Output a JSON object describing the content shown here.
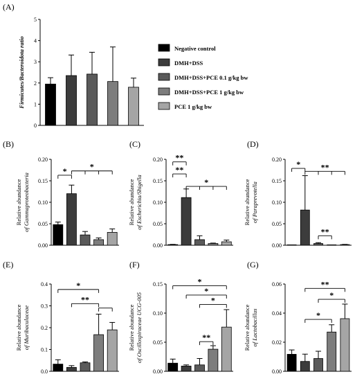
{
  "colors": {
    "s1": "#000000",
    "s2": "#3c3c3c",
    "s3": "#5a5a5a",
    "s4": "#7d7d7d",
    "s5": "#a5a5a5"
  },
  "legend": [
    "Negative control",
    "DMH+DSS",
    "DMH+DSS+PCE 0.1 g/kg bw",
    "DMH+DSS+PCE 1 g/kg bw",
    "PCE 1 g/kg bw"
  ],
  "chart_data": [
    {
      "id": "A",
      "label": "(A)",
      "type": "bar",
      "ylabel": "Firmicutes/Bacteroidota ratio",
      "ylim": [
        0,
        5
      ],
      "yticks": [
        "0",
        "1",
        "2",
        "3",
        "4",
        "5"
      ],
      "values": [
        1.95,
        2.35,
        2.42,
        2.07,
        1.8
      ],
      "errors": [
        0.3,
        0.97,
        1.03,
        1.63,
        0.43
      ],
      "significance": []
    },
    {
      "id": "B",
      "label": "(B)",
      "type": "bar",
      "ylabel": [
        "Relative abundance",
        "of Gammaproteobacteria"
      ],
      "ylim": [
        0,
        0.2
      ],
      "yticks": [
        "0.00",
        "0.05",
        "0.10",
        "0.15",
        "0.20"
      ],
      "values": [
        0.048,
        0.12,
        0.024,
        0.013,
        0.03
      ],
      "errors": [
        0.006,
        0.02,
        0.008,
        0.004,
        0.008
      ],
      "significance": [
        {
          "from": 0,
          "to": [
            1
          ],
          "y": 0.163,
          "text": "*"
        },
        {
          "from": 1,
          "to": [
            2,
            3,
            4
          ],
          "y": 0.173,
          "text": "*"
        }
      ]
    },
    {
      "id": "C",
      "label": "(C)",
      "type": "bar",
      "ylabel": [
        "Relative abundance",
        "of Escherichia/Shigella"
      ],
      "ylim": [
        0,
        0.2
      ],
      "yticks": [
        "0.00",
        "0.05",
        "0.10",
        "0.15",
        "0.20"
      ],
      "values": [
        0.0015,
        0.111,
        0.013,
        0.004,
        0.008
      ],
      "errors": [
        0.0005,
        0.02,
        0.009,
        0.001,
        0.004
      ],
      "significance": [
        {
          "from": 0,
          "to": [
            1
          ],
          "y": 0.166,
          "text": "**"
        },
        {
          "from": 0,
          "to": [
            1
          ],
          "y": 0.194,
          "text": "**"
        },
        {
          "from": 1,
          "to": [
            2,
            3,
            4
          ],
          "y": 0.137,
          "text": "*"
        }
      ]
    },
    {
      "id": "D",
      "label": "(D)",
      "type": "bar",
      "ylabel": [
        "Relative abundance",
        "of Paraprevotella"
      ],
      "ylim": [
        0,
        0.2
      ],
      "yticks": [
        "0.00",
        "0.05",
        "0.10",
        "0.15",
        "0.20"
      ],
      "values": [
        0.0,
        0.082,
        0.004,
        0.0005,
        0.0015
      ],
      "errors": [
        0.0,
        0.08,
        0.002,
        0.0003,
        0.0005
      ],
      "significance": [
        {
          "from": 0,
          "to": [
            1
          ],
          "y": 0.179,
          "text": "*"
        },
        {
          "from": 1,
          "to": [
            2,
            3,
            4
          ],
          "y": 0.172,
          "text": "**"
        },
        {
          "from": 2,
          "to": [
            3
          ],
          "y": 0.022,
          "text": "**"
        }
      ]
    },
    {
      "id": "E",
      "label": "(E)",
      "type": "bar",
      "ylabel": [
        "Relative abundance",
        "of Muribaculaceae"
      ],
      "ylim": [
        0,
        0.4
      ],
      "yticks": [
        "0.0",
        "0.1",
        "0.2",
        "0.3",
        "0.4"
      ],
      "values": [
        0.033,
        0.018,
        0.039,
        0.168,
        0.19
      ],
      "errors": [
        0.02,
        0.008,
        0.004,
        0.094,
        0.034
      ],
      "significance": [
        {
          "from": 0,
          "to": [
            3
          ],
          "y": 0.375,
          "text": "*"
        },
        {
          "from": 1,
          "to": [
            3
          ],
          "y": 0.31,
          "text": "**"
        },
        {
          "from": 3,
          "to": [
            4
          ],
          "y": 0.29,
          "text": ""
        }
      ]
    },
    {
      "id": "F",
      "label": "(F)",
      "type": "bar",
      "ylabel": [
        "Relative abundance",
        "of Oscillospiraceae UCG-005"
      ],
      "ylim": [
        0,
        0.15
      ],
      "yticks": [
        "0.00",
        "0.05",
        "0.10",
        "0.15"
      ],
      "values": [
        0.014,
        0.009,
        0.011,
        0.038,
        0.076
      ],
      "errors": [
        0.007,
        0.002,
        0.011,
        0.006,
        0.03
      ],
      "significance": [
        {
          "from": 0,
          "to": [
            4
          ],
          "y": 0.147,
          "text": "*"
        },
        {
          "from": 1,
          "to": [
            4
          ],
          "y": 0.131,
          "text": "*"
        },
        {
          "from": 2,
          "to": [
            4
          ],
          "y": 0.115,
          "text": "*"
        },
        {
          "from": 2,
          "to": [
            3
          ],
          "y": 0.051,
          "text": "**"
        }
      ]
    },
    {
      "id": "G",
      "label": "(G)",
      "type": "bar",
      "ylabel": [
        "Relative abundance",
        "of Lactobacillus"
      ],
      "ylim": [
        0,
        0.06
      ],
      "yticks": [
        "0.00",
        "0.02",
        "0.04",
        "0.06"
      ],
      "values": [
        0.0117,
        0.0068,
        0.0088,
        0.027,
        0.0362
      ],
      "errors": [
        0.003,
        0.005,
        0.005,
        0.005,
        0.01
      ],
      "significance": [
        {
          "from": 1,
          "to": [
            4
          ],
          "y": 0.057,
          "text": "**"
        },
        {
          "from": 2,
          "to": [
            4
          ],
          "y": 0.0495,
          "text": "*"
        },
        {
          "from": 1,
          "to": [
            3
          ],
          "y": 0.0357,
          "text": "*"
        }
      ]
    }
  ]
}
